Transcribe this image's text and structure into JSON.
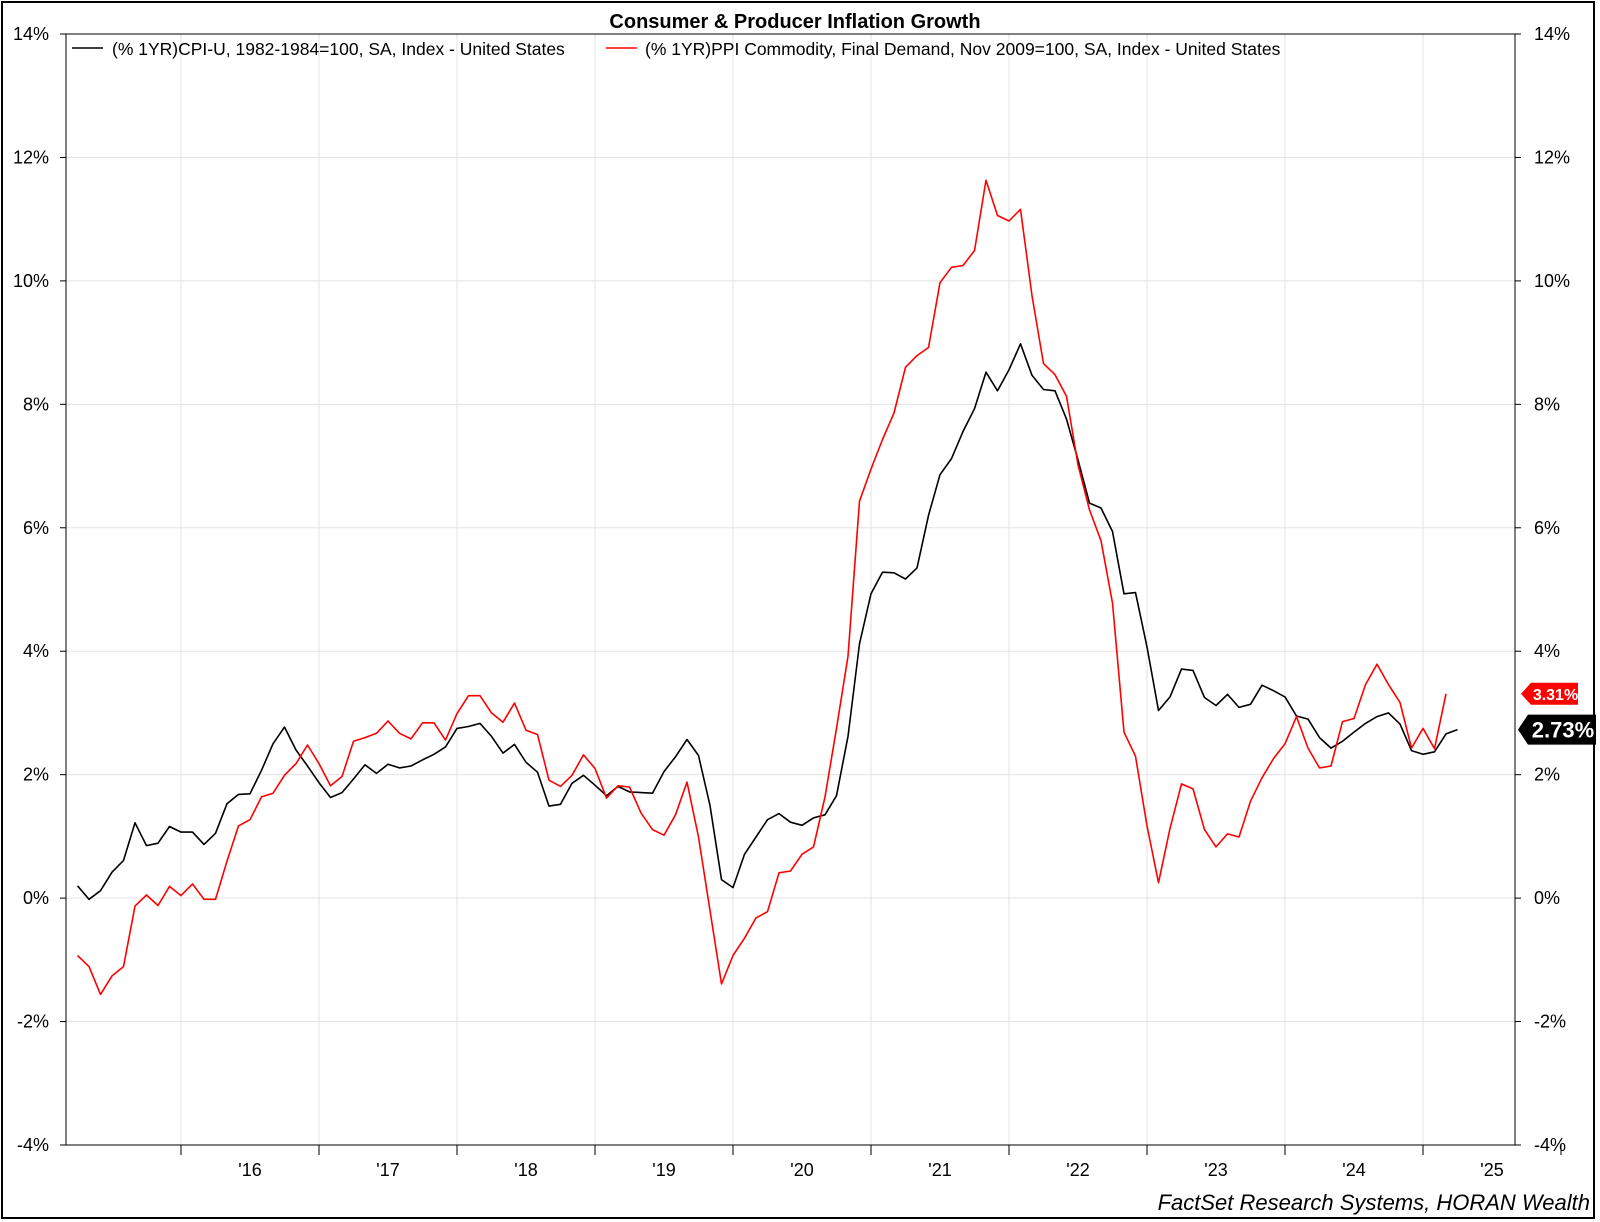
{
  "chart_data": {
    "type": "line",
    "title": "Consumer & Producer Inflation Growth",
    "source": "FactSet Research Systems, HORAN Wealth",
    "y_ticks": [
      "14%",
      "12%",
      "10%",
      "8%",
      "6%",
      "4%",
      "2%",
      "0%",
      "-2%",
      "-4%"
    ],
    "y_tick_values": [
      14,
      12,
      10,
      8,
      6,
      4,
      2,
      0,
      -2,
      -4
    ],
    "ylim": [
      -4,
      14
    ],
    "x_ticks": [
      "'16",
      "'17",
      "'18",
      "'19",
      "'20",
      "'21",
      "'22",
      "'23",
      "'24",
      "'25"
    ],
    "x_tick_years": [
      2016,
      2017,
      2018,
      2019,
      2020,
      2021,
      2022,
      2023,
      2024,
      2025
    ],
    "xlim": [
      "2015-03",
      "2025-09"
    ],
    "grid": true,
    "legend_position": "top-left",
    "series": [
      {
        "name": "(% 1YR)CPI-U, 1982-1984=100, SA, Index - United States",
        "color": "#000000",
        "last_label": "2.73%",
        "x_start": "2015-04",
        "values": [
          0.2,
          -0.02,
          0.12,
          0.42,
          0.61,
          1.22,
          0.85,
          0.89,
          1.16,
          1.07,
          1.07,
          0.87,
          1.05,
          1.53,
          1.68,
          1.69,
          2.07,
          2.5,
          2.77,
          2.4,
          2.14,
          1.87,
          1.63,
          1.71,
          1.93,
          2.16,
          2.02,
          2.17,
          2.11,
          2.14,
          2.24,
          2.33,
          2.45,
          2.75,
          2.78,
          2.83,
          2.62,
          2.35,
          2.49,
          2.2,
          2.04,
          1.49,
          1.52,
          1.86,
          1.99,
          1.83,
          1.66,
          1.81,
          1.72,
          1.71,
          1.7,
          2.05,
          2.29,
          2.57,
          2.31,
          1.5,
          0.3,
          0.17,
          0.71,
          0.99,
          1.27,
          1.37,
          1.23,
          1.18,
          1.3,
          1.35,
          1.66,
          2.62,
          4.12,
          4.93,
          5.28,
          5.27,
          5.17,
          5.35,
          6.2,
          6.86,
          7.12,
          7.56,
          7.93,
          8.52,
          8.22,
          8.56,
          8.98,
          8.47,
          8.24,
          8.22,
          7.76,
          7.1,
          6.4,
          6.32,
          5.94,
          4.93,
          4.95,
          4.07,
          3.04,
          3.26,
          3.71,
          3.69,
          3.25,
          3.12,
          3.3,
          3.09,
          3.14,
          3.45,
          3.36,
          3.26,
          2.95,
          2.9,
          2.6,
          2.43,
          2.54,
          2.69,
          2.83,
          2.94,
          3.0,
          2.82,
          2.39,
          2.33,
          2.37,
          2.66,
          2.73
        ]
      },
      {
        "name": "(% 1YR)PPI Commodity, Final Demand, Nov 2009=100, SA, Index - United States",
        "color": "#ff0000",
        "last_label": "3.31%",
        "x_start": "2015-04",
        "values": [
          -0.93,
          -1.11,
          -1.56,
          -1.26,
          -1.11,
          -0.13,
          0.05,
          -0.12,
          0.19,
          0.04,
          0.23,
          -0.02,
          -0.02,
          0.6,
          1.17,
          1.27,
          1.64,
          1.7,
          1.99,
          2.18,
          2.48,
          2.18,
          1.82,
          1.97,
          2.54,
          2.6,
          2.67,
          2.87,
          2.67,
          2.58,
          2.84,
          2.84,
          2.56,
          2.99,
          3.28,
          3.28,
          3.0,
          2.85,
          3.16,
          2.72,
          2.65,
          1.91,
          1.81,
          1.99,
          2.32,
          2.1,
          1.62,
          1.82,
          1.8,
          1.38,
          1.11,
          1.02,
          1.35,
          1.88,
          0.99,
          -0.2,
          -1.39,
          -0.93,
          -0.65,
          -0.32,
          -0.22,
          0.41,
          0.44,
          0.71,
          0.83,
          1.64,
          2.75,
          3.92,
          6.43,
          6.95,
          7.43,
          7.86,
          8.6,
          8.79,
          8.92,
          9.97,
          10.22,
          10.25,
          10.49,
          11.63,
          11.06,
          10.97,
          11.16,
          9.76,
          8.66,
          8.48,
          8.13,
          7.02,
          6.29,
          5.79,
          4.78,
          2.69,
          2.3,
          1.17,
          0.25,
          1.13,
          1.85,
          1.77,
          1.11,
          0.83,
          1.04,
          0.99,
          1.57,
          1.95,
          2.26,
          2.5,
          2.94,
          2.43,
          2.11,
          2.14,
          2.86,
          2.91,
          3.46,
          3.79,
          3.46,
          3.17,
          2.43,
          2.75,
          2.42,
          3.31
        ]
      }
    ]
  }
}
